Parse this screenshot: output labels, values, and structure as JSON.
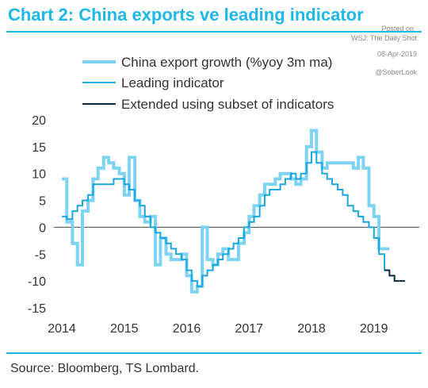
{
  "header": {
    "title": "Chart 2: China exports ve leading indicator"
  },
  "watermark": {
    "line1": "Posted on",
    "line2": "WSJ: The Daily Shot",
    "line3": "08-Apr-2019",
    "line4": "@SoberLook"
  },
  "footer": {
    "source": "Source: Bloomberg, TS Lombard."
  },
  "chart_data": {
    "type": "line",
    "title": "Chart 2: China exports ve leading indicator",
    "xlabel": "",
    "ylabel": "",
    "xlim": [
      2014,
      2019.6
    ],
    "ylim": [
      -15,
      20
    ],
    "x_ticks": [
      "2014",
      "2015",
      "2016",
      "2017",
      "2018",
      "2019"
    ],
    "y_ticks": [
      "20",
      "15",
      "10",
      "5",
      "0",
      "-5",
      "-10",
      "-15"
    ],
    "grid": false,
    "legend_position": "top",
    "colors": {
      "export": "#7fd3f2",
      "leading": "#1aa7de",
      "extended": "#0d2a3c"
    },
    "series": [
      {
        "name": "China export growth (%yoy 3m ma)",
        "style": "thick-light",
        "points": [
          [
            2014.0,
            9
          ],
          [
            2014.08,
            1
          ],
          [
            2014.17,
            -3
          ],
          [
            2014.25,
            -7
          ],
          [
            2014.33,
            3
          ],
          [
            2014.42,
            5
          ],
          [
            2014.5,
            9
          ],
          [
            2014.58,
            11
          ],
          [
            2014.67,
            13
          ],
          [
            2014.75,
            12
          ],
          [
            2014.83,
            11
          ],
          [
            2014.92,
            10
          ],
          [
            2015.0,
            6
          ],
          [
            2015.08,
            13
          ],
          [
            2015.17,
            5
          ],
          [
            2015.25,
            2
          ],
          [
            2015.33,
            1
          ],
          [
            2015.42,
            2
          ],
          [
            2015.5,
            -7
          ],
          [
            2015.58,
            -2
          ],
          [
            2015.67,
            -5
          ],
          [
            2015.75,
            -6
          ],
          [
            2015.83,
            -6
          ],
          [
            2015.92,
            -5
          ],
          [
            2016.0,
            -9
          ],
          [
            2016.08,
            -12
          ],
          [
            2016.17,
            -11
          ],
          [
            2016.25,
            0
          ],
          [
            2016.33,
            -6
          ],
          [
            2016.42,
            -7
          ],
          [
            2016.5,
            -5
          ],
          [
            2016.58,
            -4
          ],
          [
            2016.67,
            -6
          ],
          [
            2016.75,
            -6
          ],
          [
            2016.83,
            -3
          ],
          [
            2016.92,
            -1
          ],
          [
            2017.0,
            2
          ],
          [
            2017.08,
            4
          ],
          [
            2017.17,
            6
          ],
          [
            2017.25,
            8
          ],
          [
            2017.33,
            8
          ],
          [
            2017.42,
            9
          ],
          [
            2017.5,
            10
          ],
          [
            2017.58,
            10
          ],
          [
            2017.67,
            9
          ],
          [
            2017.75,
            8
          ],
          [
            2017.83,
            9
          ],
          [
            2017.92,
            15
          ],
          [
            2018.0,
            18
          ],
          [
            2018.08,
            14
          ],
          [
            2018.17,
            11
          ],
          [
            2018.25,
            12
          ],
          [
            2018.33,
            12
          ],
          [
            2018.42,
            12
          ],
          [
            2018.5,
            12
          ],
          [
            2018.58,
            12
          ],
          [
            2018.67,
            11
          ],
          [
            2018.75,
            13
          ],
          [
            2018.83,
            11
          ],
          [
            2018.92,
            4
          ],
          [
            2019.0,
            2
          ],
          [
            2019.08,
            -4
          ],
          [
            2019.17,
            -4
          ]
        ]
      },
      {
        "name": "Leading indicator",
        "style": "thin",
        "points": [
          [
            2014.0,
            2
          ],
          [
            2014.08,
            1.5
          ],
          [
            2014.17,
            3
          ],
          [
            2014.25,
            4
          ],
          [
            2014.33,
            5
          ],
          [
            2014.42,
            6
          ],
          [
            2014.5,
            8
          ],
          [
            2014.58,
            8
          ],
          [
            2014.67,
            8
          ],
          [
            2014.75,
            8
          ],
          [
            2014.83,
            9
          ],
          [
            2014.92,
            9
          ],
          [
            2015.0,
            8
          ],
          [
            2015.08,
            7
          ],
          [
            2015.17,
            5
          ],
          [
            2015.25,
            4
          ],
          [
            2015.33,
            2
          ],
          [
            2015.42,
            0
          ],
          [
            2015.5,
            -1
          ],
          [
            2015.58,
            -2
          ],
          [
            2015.67,
            -3
          ],
          [
            2015.75,
            -4
          ],
          [
            2015.83,
            -5
          ],
          [
            2015.92,
            -6
          ],
          [
            2016.0,
            -8
          ],
          [
            2016.08,
            -10
          ],
          [
            2016.17,
            -11
          ],
          [
            2016.25,
            -9
          ],
          [
            2016.33,
            -8
          ],
          [
            2016.42,
            -7
          ],
          [
            2016.5,
            -6
          ],
          [
            2016.58,
            -5
          ],
          [
            2016.67,
            -4
          ],
          [
            2016.75,
            -3
          ],
          [
            2016.83,
            -2
          ],
          [
            2016.92,
            0
          ],
          [
            2017.0,
            1
          ],
          [
            2017.08,
            2
          ],
          [
            2017.17,
            4
          ],
          [
            2017.25,
            6
          ],
          [
            2017.33,
            7
          ],
          [
            2017.42,
            7
          ],
          [
            2017.5,
            8
          ],
          [
            2017.58,
            9
          ],
          [
            2017.67,
            10
          ],
          [
            2017.75,
            9
          ],
          [
            2017.83,
            10
          ],
          [
            2017.92,
            12
          ],
          [
            2018.0,
            14
          ],
          [
            2018.08,
            12
          ],
          [
            2018.17,
            10
          ],
          [
            2018.25,
            9
          ],
          [
            2018.33,
            8
          ],
          [
            2018.42,
            7
          ],
          [
            2018.5,
            6
          ],
          [
            2018.58,
            4
          ],
          [
            2018.67,
            3
          ],
          [
            2018.75,
            2
          ],
          [
            2018.83,
            1
          ],
          [
            2018.92,
            0
          ],
          [
            2019.0,
            -2
          ],
          [
            2019.08,
            -5
          ],
          [
            2019.17,
            -8
          ]
        ]
      },
      {
        "name": "Extended using subset of indicators",
        "style": "thin-dark",
        "points": [
          [
            2019.17,
            -8
          ],
          [
            2019.25,
            -9
          ],
          [
            2019.33,
            -10
          ],
          [
            2019.42,
            -10
          ]
        ]
      }
    ]
  }
}
